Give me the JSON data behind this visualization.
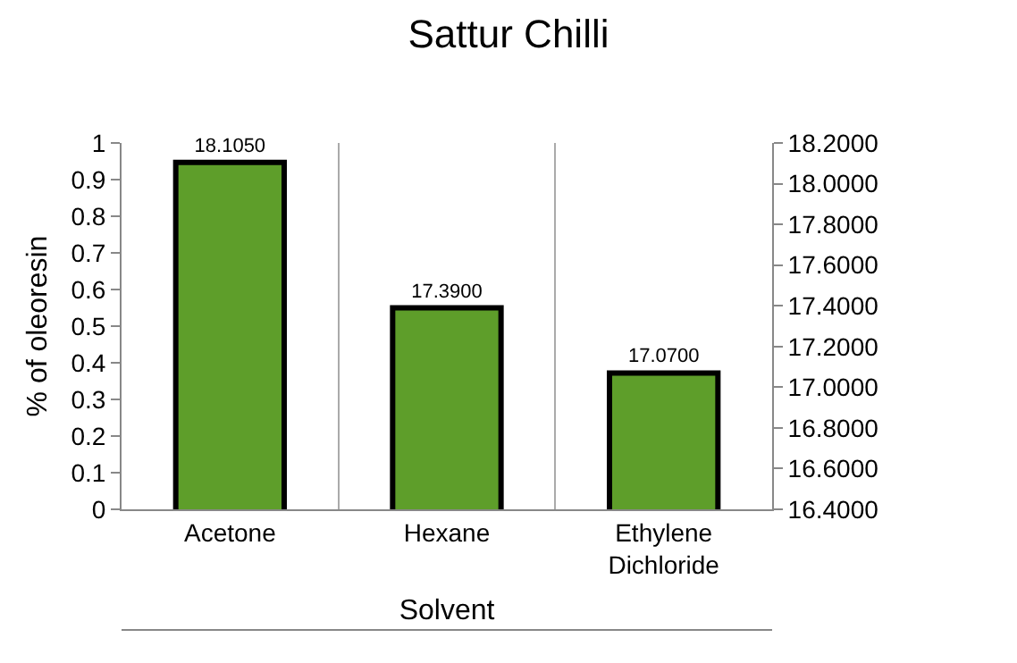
{
  "chart_data": {
    "type": "bar",
    "title": "Sattur Chilli",
    "xlabel": "Solvent",
    "ylabel": "% of oleoresin",
    "categories": [
      "Acetone",
      "Hexane",
      "Ethylene Dichloride"
    ],
    "series": [
      {
        "color": "#5e9e2a",
        "values": [
          18.105,
          17.39,
          17.07
        ],
        "value_labels": [
          "18.1050",
          "17.3900",
          "17.0700"
        ],
        "axis": "y2"
      }
    ],
    "ylim": [
      0,
      1
    ],
    "yticks": [
      0,
      0.1,
      0.2,
      0.3,
      0.4,
      0.5,
      0.6,
      0.7,
      0.8,
      0.9,
      1
    ],
    "y2lim": [
      16.4,
      18.2
    ],
    "y2ticks": [
      {
        "value": 16.4,
        "label": "16.4000"
      },
      {
        "value": 16.6,
        "label": "16.6000"
      },
      {
        "value": 16.8,
        "label": "16.8000"
      },
      {
        "value": 17.0,
        "label": "17.0000"
      },
      {
        "value": 17.2,
        "label": "17.2000"
      },
      {
        "value": 17.4,
        "label": "17.4000"
      },
      {
        "value": 17.6,
        "label": "17.6000"
      },
      {
        "value": 17.8,
        "label": "17.8000"
      },
      {
        "value": 18.0,
        "label": "18.0000"
      },
      {
        "value": 18.2,
        "label": "18.2000"
      }
    ],
    "grid": "x",
    "legend": false
  }
}
